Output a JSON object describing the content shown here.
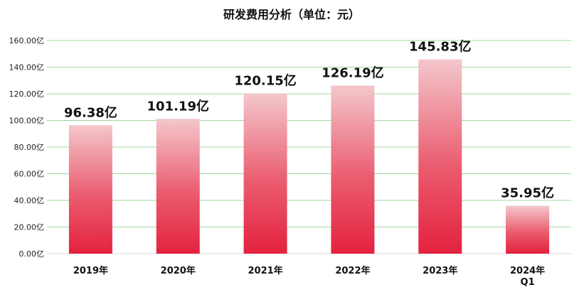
{
  "chart_data": {
    "type": "bar",
    "title": "研发费用分析（单位：元）",
    "categories": [
      [
        "2019年"
      ],
      [
        "2020年"
      ],
      [
        "2021年"
      ],
      [
        "2022年"
      ],
      [
        "2023年"
      ],
      [
        "2024年",
        "Q1"
      ]
    ],
    "values": [
      96.38,
      101.19,
      120.15,
      126.19,
      145.83,
      35.95
    ],
    "data_labels": [
      "96.38亿",
      "101.19亿",
      "120.15亿",
      "126.19亿",
      "145.83亿",
      "35.95亿"
    ],
    "ylim": [
      0,
      160
    ],
    "yticks": [
      0,
      20,
      40,
      60,
      80,
      100,
      120,
      140,
      160
    ],
    "ytick_labels": [
      "0.00亿",
      "20.00亿",
      "40.00亿",
      "60.00亿",
      "80.00亿",
      "100.00亿",
      "120.00亿",
      "140.00亿",
      "160.00亿"
    ],
    "grid": true,
    "bar_color_top": "#f4c7cc",
    "bar_color_bottom": "#e4223f",
    "grid_color": "#9fd79f"
  }
}
